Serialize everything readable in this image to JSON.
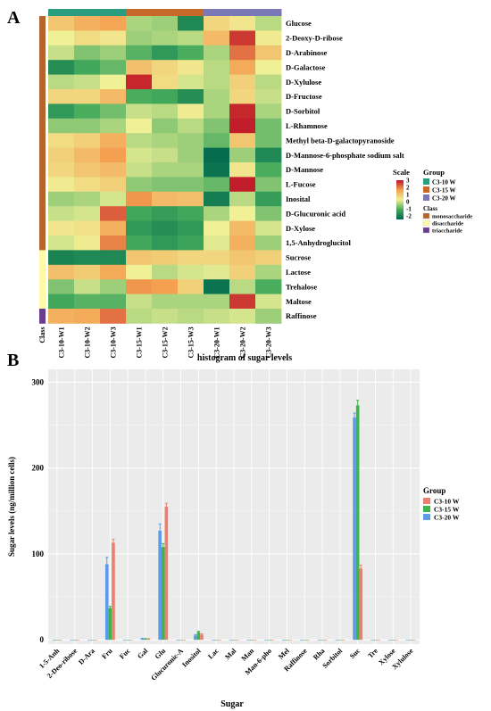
{
  "panels": {
    "a": "A",
    "b": "B"
  },
  "heatmap": {
    "columns": [
      "C3-10-W1",
      "C3-10-W2",
      "C3-10-W3",
      "C3-15-W1",
      "C3-15-W2",
      "C3-15-W3",
      "C3-20-W1",
      "C3-20-W2",
      "C3-20-W3"
    ],
    "column_groups": [
      "C3-10 W",
      "C3-10 W",
      "C3-10 W",
      "C3-15 W",
      "C3-15 W",
      "C3-15 W",
      "C3-20 W",
      "C3-20 W",
      "C3-20 W"
    ],
    "rows": [
      "Glucose",
      "2-Deoxy-D-ribose",
      "D-Arabinose",
      "D-Galactose",
      "D-Xylulose",
      "D-Fructose",
      "D-Sorbitol",
      "L-Rhamnose",
      "Methyl beta-D-galactopyranoside",
      "D-Mannose-6-phosphate sodium salt",
      "D-Mannose",
      "L-Fucose",
      "Inosital",
      "D-Glucuronic acid",
      "D-Xylose",
      "1,5-Anhydroglucitol",
      "Sucrose",
      "Lactose",
      "Trehalose",
      "Maltose",
      "Raffinose"
    ],
    "row_classes": [
      "monosaccharide",
      "monosaccharide",
      "monosaccharide",
      "monosaccharide",
      "monosaccharide",
      "monosaccharide",
      "monosaccharide",
      "monosaccharide",
      "monosaccharide",
      "monosaccharide",
      "monosaccharide",
      "monosaccharide",
      "monosaccharide",
      "monosaccharide",
      "monosaccharide",
      "monosaccharide",
      "disaccharide",
      "disaccharide",
      "disaccharide",
      "disaccharide",
      "triaccharide"
    ],
    "values": [
      [
        0.8,
        1.2,
        1.4,
        -0.5,
        -0.6,
        -1.9,
        0.5,
        0.2,
        -0.4
      ],
      [
        0.0,
        0.4,
        0.2,
        -0.6,
        -0.5,
        -0.4,
        1.0,
        2.6,
        0.1
      ],
      [
        -0.3,
        -0.8,
        -0.6,
        -1.1,
        -1.6,
        -1.2,
        -0.5,
        2.0,
        0.8
      ],
      [
        -1.8,
        -1.3,
        -1.0,
        0.9,
        0.5,
        0.2,
        -0.4,
        1.3,
        0.0
      ],
      [
        -0.4,
        -0.3,
        0.0,
        2.8,
        0.4,
        -0.2,
        -0.4,
        0.6,
        -0.4
      ],
      [
        0.5,
        0.5,
        1.0,
        -1.2,
        -1.3,
        -1.8,
        -0.5,
        0.5,
        -0.3
      ],
      [
        -1.6,
        -1.2,
        -0.9,
        -0.3,
        -0.4,
        0.1,
        -0.5,
        2.8,
        -0.5
      ],
      [
        -0.7,
        -0.7,
        -0.5,
        0.0,
        -0.7,
        -0.4,
        -0.8,
        2.9,
        -0.9
      ],
      [
        0.4,
        0.6,
        1.2,
        -0.4,
        -0.5,
        -0.6,
        -1.0,
        0.8,
        -0.9
      ],
      [
        0.6,
        1.0,
        1.5,
        -0.2,
        -0.3,
        -0.6,
        -2.4,
        -0.6,
        -1.9
      ],
      [
        0.5,
        0.8,
        1.0,
        -0.3,
        -0.5,
        -0.5,
        -2.3,
        0.2,
        -1.2
      ],
      [
        0.1,
        0.4,
        0.6,
        -0.7,
        -0.8,
        -0.8,
        -1.0,
        2.9,
        -0.8
      ],
      [
        -0.6,
        -0.5,
        -0.2,
        1.6,
        1.0,
        0.9,
        -2.1,
        -0.4,
        -1.5
      ],
      [
        -0.3,
        -0.2,
        2.2,
        -1.3,
        -1.5,
        -1.3,
        -0.5,
        0.0,
        -0.8
      ],
      [
        0.2,
        0.3,
        1.2,
        -1.6,
        -1.8,
        -1.6,
        0.0,
        1.0,
        -0.2
      ],
      [
        -0.2,
        0.1,
        1.8,
        -1.3,
        -1.6,
        -1.4,
        -0.1,
        1.2,
        -0.6
      ],
      [
        -2.0,
        -1.9,
        -1.9,
        0.8,
        0.7,
        0.5,
        0.5,
        0.8,
        0.6
      ],
      [
        0.9,
        0.7,
        1.3,
        0.0,
        -0.4,
        -0.2,
        -0.1,
        0.6,
        -0.5
      ],
      [
        -0.8,
        -0.3,
        -0.6,
        1.6,
        1.5,
        0.6,
        -2.3,
        -0.4,
        -1.2
      ],
      [
        -1.3,
        -1.1,
        -1.1,
        -0.3,
        -0.5,
        -0.5,
        -0.5,
        2.6,
        -0.2
      ],
      [
        1.2,
        1.3,
        2.0,
        -0.4,
        -0.3,
        -0.4,
        -0.3,
        -0.2,
        -0.6
      ]
    ],
    "class_axis_label": "Class",
    "scale_title": "Scale",
    "scale_ticks": [
      "3",
      "2",
      "1",
      "0",
      "-1",
      "-2"
    ],
    "group_legend_title": "Group",
    "group_legend": [
      {
        "name": "C3-10 W",
        "color": "#2a9d7f"
      },
      {
        "name": "C3-15 W",
        "color": "#c8692a"
      },
      {
        "name": "C3-20 W",
        "color": "#7b78b7"
      }
    ],
    "class_legend_title": "Class",
    "class_legend": [
      {
        "name": "monosaccharide",
        "color": "#b5662c"
      },
      {
        "name": "disaccharide",
        "color": "#fffaa8"
      },
      {
        "name": "triaccharide",
        "color": "#6b3d8f"
      }
    ]
  },
  "chart_data": {
    "type": "bar",
    "title": "histogram of sugar levels",
    "xlabel": "Sugar",
    "ylabel": "Sugar levels (ng/million cells)",
    "ylim": [
      -5,
      315
    ],
    "yticks": [
      0,
      100,
      200,
      300
    ],
    "grid": true,
    "legend_title": "Group",
    "legend_position": "right",
    "categories": [
      "1-5-Anh",
      "2-Deo-ribose",
      "D-Ara",
      "Fru",
      "Fuc",
      "Gal",
      "Glu",
      "Glucuronic-A",
      "Inositol",
      "Lac",
      "Mal",
      "Man",
      "Man-6-pho",
      "Mel",
      "Raffinose",
      "Rha",
      "Sorbitol",
      "Suc",
      "Tre",
      "Xylose",
      "Xylulose"
    ],
    "series": [
      {
        "name": "C3-10 W",
        "color": "#f07e6e",
        "values": [
          0.2,
          0.2,
          0.2,
          113,
          0.2,
          1.0,
          155,
          0.2,
          6,
          0.2,
          0.2,
          0.2,
          0.2,
          0.2,
          0.2,
          0.2,
          0.2,
          83,
          0.2,
          0.2,
          0.2
        ],
        "errors": [
          0,
          0,
          0,
          4,
          0,
          0.3,
          4,
          0,
          1,
          0,
          0,
          0,
          0,
          0,
          0,
          0,
          0,
          4,
          0,
          0,
          0
        ]
      },
      {
        "name": "C3-15 W",
        "color": "#3cb54a",
        "values": [
          0.2,
          0.2,
          0.2,
          37,
          0.2,
          1.2,
          108,
          0.2,
          9,
          0.2,
          0.2,
          0.2,
          0.2,
          0.2,
          0.2,
          0.2,
          0.2,
          273,
          0.2,
          0.2,
          0.2
        ],
        "errors": [
          0,
          0,
          0,
          2,
          0,
          0.3,
          4,
          0,
          1,
          0,
          0,
          0,
          0,
          0,
          0,
          0,
          0,
          6,
          0,
          0,
          0
        ]
      },
      {
        "name": "C3-20 W",
        "color": "#5c9bea",
        "values": [
          0.2,
          0.2,
          0.2,
          88,
          0.2,
          1.5,
          127,
          0.2,
          5,
          0.2,
          0.2,
          0.2,
          0.2,
          0.2,
          0.2,
          0.2,
          0.2,
          259,
          0.2,
          0.2,
          0.2
        ],
        "errors": [
          0,
          0,
          0,
          8,
          0,
          0.3,
          8,
          0,
          1,
          0,
          0,
          0,
          0,
          0,
          0,
          0,
          0,
          5,
          0,
          0,
          0
        ]
      }
    ]
  }
}
